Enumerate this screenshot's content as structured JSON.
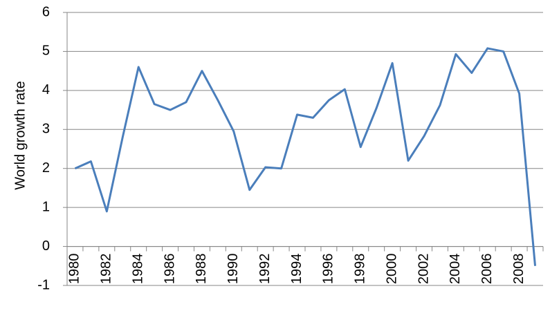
{
  "chart_data": {
    "type": "line",
    "y_label": "World growth rate",
    "categories": [
      "1980",
      null,
      "1982",
      null,
      "1984",
      null,
      "1986",
      null,
      "1988",
      null,
      "1990",
      null,
      "1992",
      null,
      "1994",
      null,
      "1996",
      null,
      "1998",
      null,
      "2000",
      null,
      "2002",
      null,
      "2004",
      null,
      "2006",
      null,
      "2008",
      null
    ],
    "series": [
      {
        "name": "World growth rate",
        "color": "#4a7ebb",
        "values": [
          2.0,
          2.18,
          0.9,
          2.8,
          4.6,
          3.65,
          3.5,
          3.7,
          4.5,
          3.75,
          2.95,
          1.45,
          2.03,
          2.0,
          3.38,
          3.3,
          3.75,
          4.03,
          2.55,
          3.55,
          4.7,
          2.2,
          2.83,
          3.62,
          4.93,
          4.45,
          5.08,
          5.0,
          3.92,
          -0.5
        ]
      }
    ],
    "ylim": [
      -1,
      6
    ],
    "yticks": [
      -1,
      0,
      1,
      2,
      3,
      4,
      5,
      6
    ],
    "grid": true
  }
}
